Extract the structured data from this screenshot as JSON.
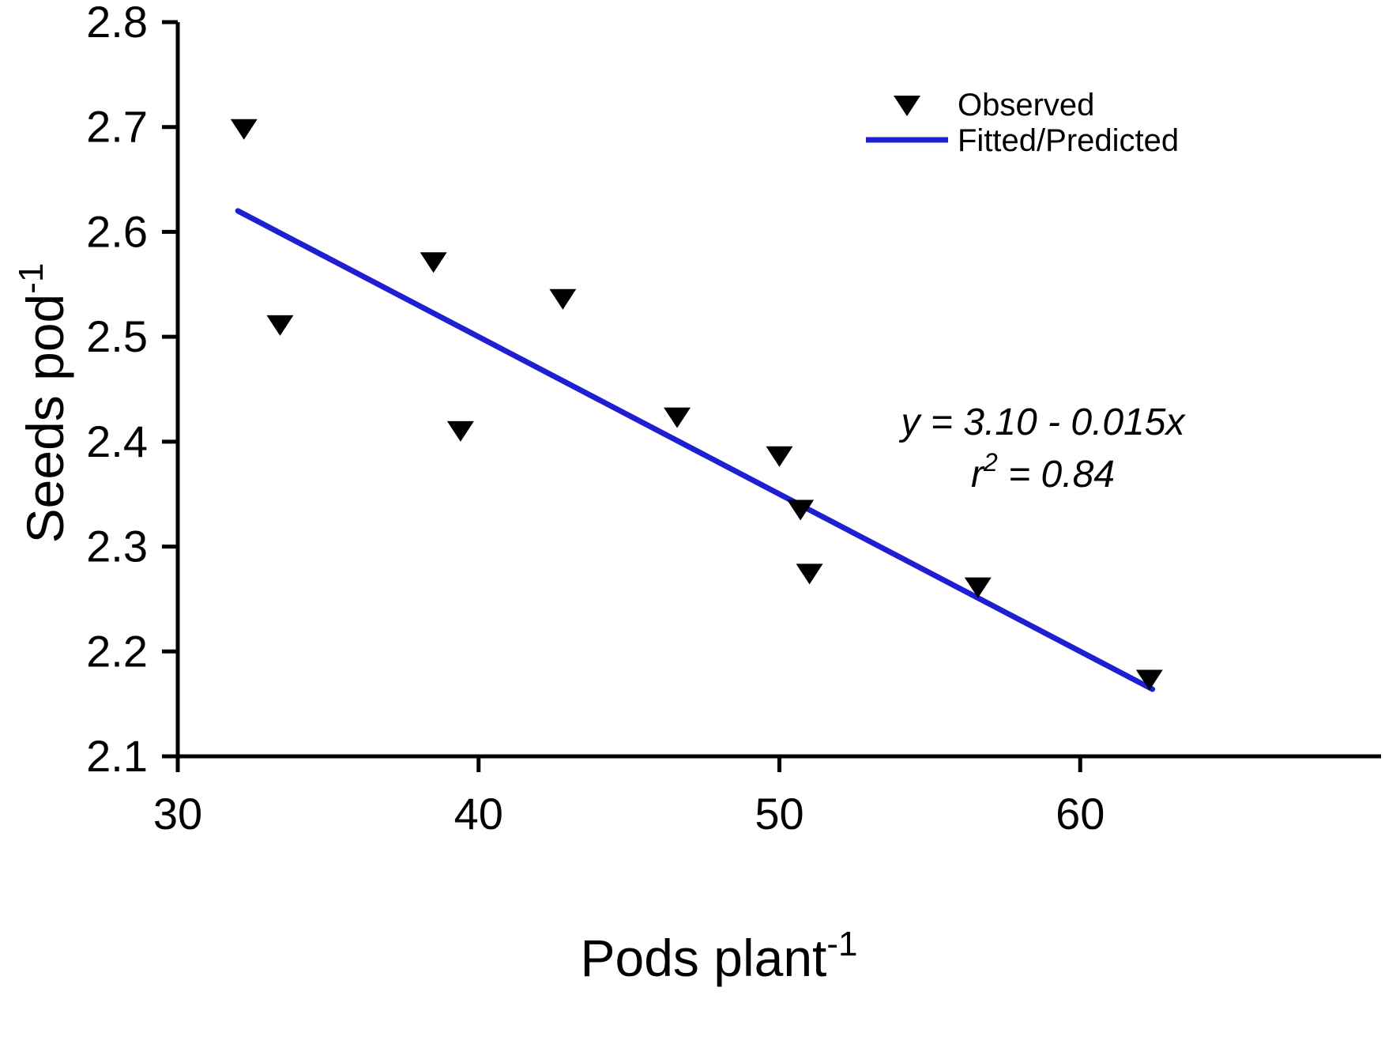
{
  "figure": {
    "background": "#ffffff",
    "axis_color": "#000000",
    "line_color": "#1f1fd1",
    "marker_color": "#000000"
  },
  "chart_data": {
    "type": "scatter",
    "title": "",
    "xlabel": {
      "base": "Pods plant",
      "superscript": "-1"
    },
    "ylabel": {
      "base": "Seeds pod",
      "superscript": "-1"
    },
    "xlim": [
      30,
      70
    ],
    "ylim": [
      2.1,
      2.8
    ],
    "x_ticks": [
      30,
      40,
      50,
      60
    ],
    "y_ticks": [
      2.1,
      2.2,
      2.3,
      2.4,
      2.5,
      2.6,
      2.7,
      2.8
    ],
    "grid": false,
    "legend": {
      "position": "top-right",
      "entries": [
        {
          "label": "Observed",
          "type": "marker",
          "marker": "triangle-down",
          "color": "#000000"
        },
        {
          "label": "Fitted/Predicted",
          "type": "line",
          "color": "#1f1fd1"
        }
      ]
    },
    "series": [
      {
        "name": "Observed",
        "type": "scatter",
        "marker": "triangle-down",
        "color": "#000000",
        "points": [
          [
            32.2,
            2.7
          ],
          [
            33.4,
            2.513
          ],
          [
            38.5,
            2.573
          ],
          [
            39.4,
            2.412
          ],
          [
            42.8,
            2.538
          ],
          [
            46.6,
            2.425
          ],
          [
            50.0,
            2.388
          ],
          [
            50.7,
            2.337
          ],
          [
            51.0,
            2.276
          ],
          [
            56.6,
            2.263
          ],
          [
            62.3,
            2.175
          ]
        ]
      },
      {
        "name": "Fitted/Predicted",
        "type": "line",
        "color": "#1f1fd1",
        "intercept": 3.1,
        "slope": -0.015,
        "x_start": 32.0,
        "x_end": 62.4
      }
    ],
    "annotation": {
      "line1": "y = 3.10 - 0.015x",
      "line2": {
        "base": "r",
        "superscript": "2",
        "rest": " = 0.84"
      }
    }
  }
}
